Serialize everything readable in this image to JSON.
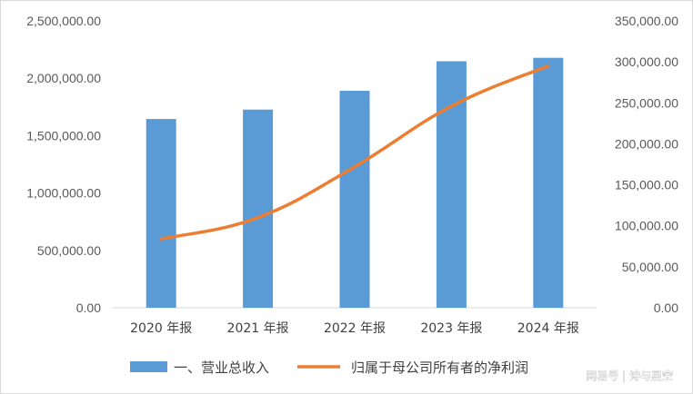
{
  "chart_data": {
    "type": "bar",
    "categories": [
      "2020 年报",
      "2021 年报",
      "2022 年报",
      "2023 年报",
      "2024 年报"
    ],
    "series": [
      {
        "name": "一、营业总收入",
        "type": "bar",
        "axis": "left",
        "color": "#5b9bd5",
        "values": [
          1645000,
          1727000,
          1891000,
          2148000,
          2178000
        ]
      },
      {
        "name": "归属于母公司所有者的净利润",
        "type": "line",
        "axis": "right",
        "color": "#ed7d31",
        "values": [
          84000,
          110000,
          172000,
          246000,
          295000
        ]
      }
    ],
    "y_left": {
      "ylim": [
        0,
        2500000
      ],
      "ticks": [
        "0.00",
        "500,000.00",
        "1,000,000.00",
        "1,500,000.00",
        "2,000,000.00",
        "2,500,000.00"
      ]
    },
    "y_right": {
      "ylim": [
        0,
        350000
      ],
      "ticks": [
        "0.00",
        "50,000.00",
        "100,000.00",
        "150,000.00",
        "200,000.00",
        "250,000.00",
        "300,000.00",
        "350,000.00"
      ]
    },
    "grid": false,
    "legend_position": "bottom"
  },
  "watermark": "网易号 | 诗与星空"
}
